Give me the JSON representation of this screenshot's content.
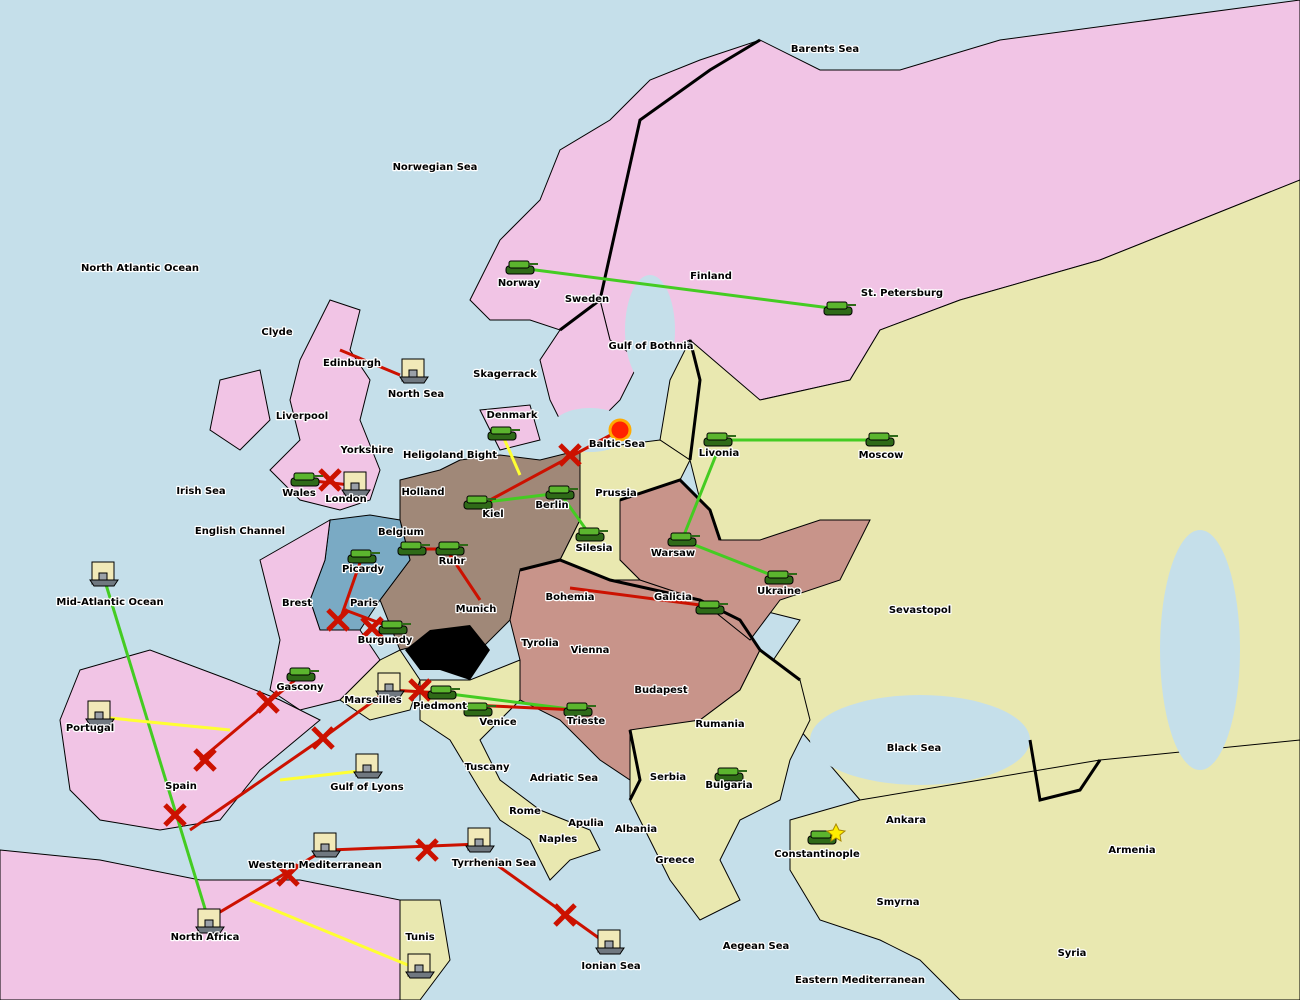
{
  "game": "Diplomacy",
  "colors": {
    "sea": "#c5dfea",
    "russia": "#f1c4e5",
    "england": "#f1c4e5",
    "neutral": "#e9e8b0",
    "germany": "#a08878",
    "austria": "#c8948a",
    "france": "#7aaac4",
    "switzerland": "#000000",
    "support_line": "#44cc22",
    "failed_move": "#cc1100",
    "convoy_line": "#ffff33"
  },
  "labels": [
    "Barents Sea",
    "Norwegian Sea",
    "North Atlantic Ocean",
    "Clyde",
    "Edinburgh",
    "North Sea",
    "Liverpool",
    "Yorkshire",
    "Irish Sea",
    "Wales",
    "London",
    "English Channel",
    "Brest",
    "Mid-Atlantic Ocean",
    "Picardy",
    "Paris",
    "Burgundy",
    "Gascony",
    "Marseilles",
    "Portugal",
    "Spain",
    "Gulf of Lyons",
    "Western Mediterranean",
    "North Africa",
    "Tunis",
    "Tyrrhenian Sea",
    "Ionian Sea",
    "Naples",
    "Rome",
    "Apulia",
    "Tuscany",
    "Piedmont",
    "Venice",
    "Trieste",
    "Adriatic Sea",
    "Albania",
    "Greece",
    "Serbia",
    "Bulgaria",
    "Rumania",
    "Budapest",
    "Vienna",
    "Tyrolia",
    "Bohemia",
    "Galicia",
    "Munich",
    "Ruhr",
    "Kiel",
    "Berlin",
    "Silesia",
    "Prussia",
    "Holland",
    "Belgium",
    "Heligoland Bight",
    "Denmark",
    "Skagerrack",
    "Norway",
    "Sweden",
    "Gulf of Bothnia",
    "Finland",
    "St. Petersburg",
    "Livonia",
    "Moscow",
    "Warsaw",
    "Ukraine",
    "Sevastopol",
    "Black Sea",
    "Ankara",
    "Armenia",
    "Constantinople",
    "Smyrna",
    "Syria",
    "Aegean Sea",
    "Eastern Mediterranean",
    "Baltic Sea"
  ],
  "units": [
    {
      "type": "army",
      "province": "Norway"
    },
    {
      "type": "army",
      "province": "St. Petersburg"
    },
    {
      "type": "army",
      "province": "Moscow"
    },
    {
      "type": "army",
      "province": "Livonia"
    },
    {
      "type": "army",
      "province": "Ukraine"
    },
    {
      "type": "army",
      "province": "Warsaw"
    },
    {
      "type": "army",
      "province": "Galicia"
    },
    {
      "type": "army",
      "province": "Silesia"
    },
    {
      "type": "army",
      "province": "Berlin"
    },
    {
      "type": "army",
      "province": "Kiel"
    },
    {
      "type": "army",
      "province": "Denmark"
    },
    {
      "type": "army",
      "province": "Ruhr"
    },
    {
      "type": "army",
      "province": "Belgium"
    },
    {
      "type": "army",
      "province": "Picardy"
    },
    {
      "type": "army",
      "province": "Burgundy"
    },
    {
      "type": "army",
      "province": "Gascony"
    },
    {
      "type": "army",
      "province": "Piedmont"
    },
    {
      "type": "army",
      "province": "Venice"
    },
    {
      "type": "army",
      "province": "Trieste"
    },
    {
      "type": "army",
      "province": "Bulgaria"
    },
    {
      "type": "army",
      "province": "Constantinople"
    },
    {
      "type": "army",
      "province": "Wales"
    },
    {
      "type": "fleet",
      "province": "North Sea"
    },
    {
      "type": "fleet",
      "province": "London"
    },
    {
      "type": "fleet",
      "province": "Mid-Atlantic Ocean"
    },
    {
      "type": "fleet",
      "province": "Portugal"
    },
    {
      "type": "fleet",
      "province": "Marseilles"
    },
    {
      "type": "fleet",
      "province": "Gulf of Lyons"
    },
    {
      "type": "fleet",
      "province": "Western Mediterranean"
    },
    {
      "type": "fleet",
      "province": "Tyrrhenian Sea"
    },
    {
      "type": "fleet",
      "province": "Ionian Sea"
    },
    {
      "type": "fleet",
      "province": "North Africa"
    },
    {
      "type": "fleet",
      "province": "Tunis"
    }
  ],
  "markers": [
    {
      "type": "dislodged",
      "province": "Baltic Sea"
    },
    {
      "type": "star",
      "province": "Constantinople"
    }
  ]
}
